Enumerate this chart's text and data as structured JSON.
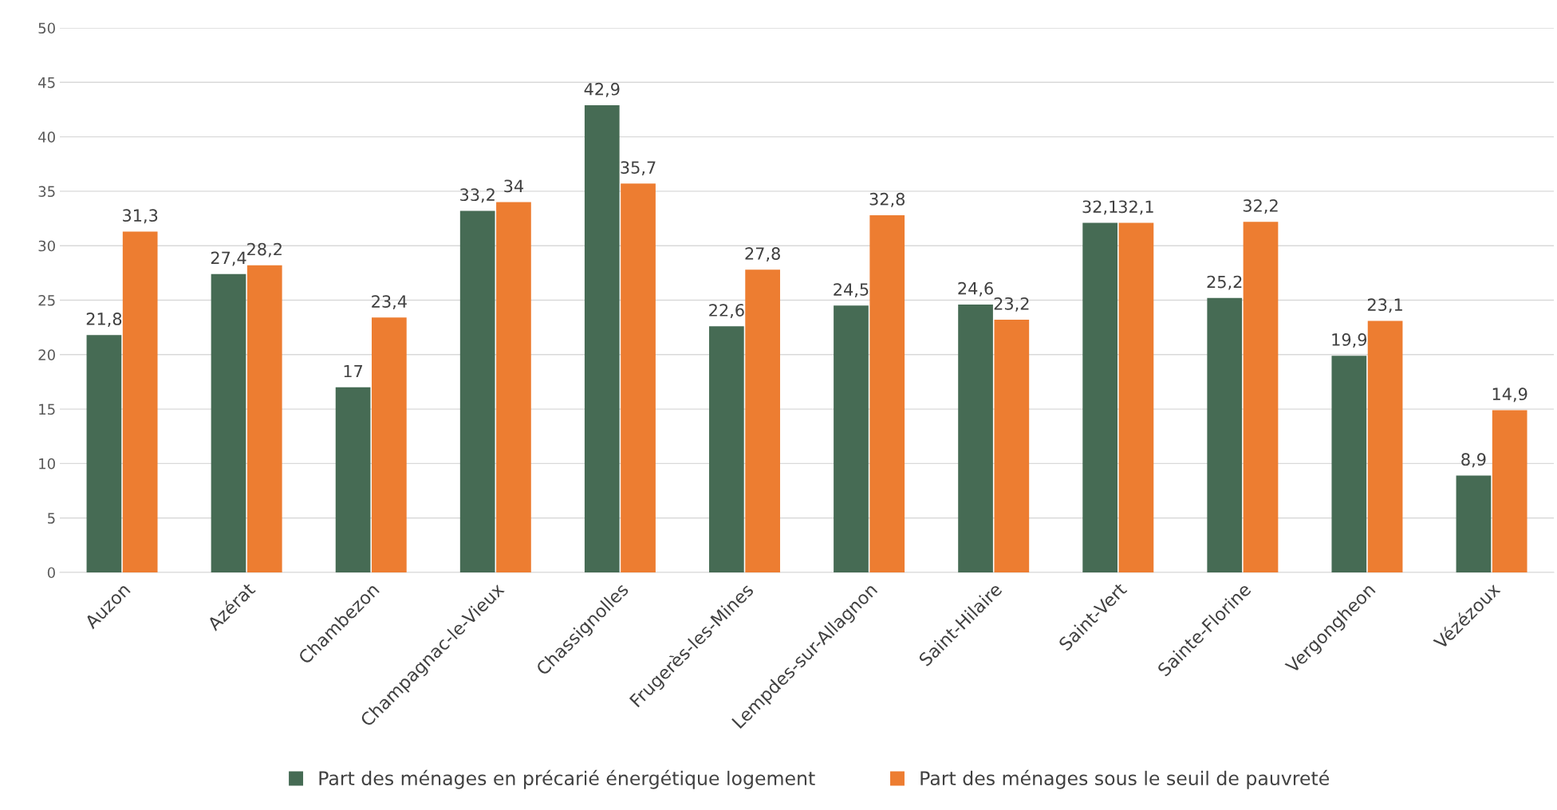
{
  "chart_data": {
    "type": "bar",
    "categories": [
      "Auzon",
      "Azérat",
      "Chambezon",
      "Champagnac-le-Vieux",
      "Chassignolles",
      "Frugerès-les-Mines",
      "Lempdes-sur-Allagnon",
      "Saint-Hilaire",
      "Saint-Vert",
      "Sainte-Florine",
      "Vergongheon",
      "Vézézoux"
    ],
    "series": [
      {
        "name": "Part des ménages en précarié énergétique logement",
        "color": "#466b54",
        "values": [
          21.8,
          27.4,
          17,
          33.2,
          42.9,
          22.6,
          24.5,
          24.6,
          32.1,
          25.2,
          19.9,
          8.9
        ],
        "value_labels": [
          "21,8",
          "27,4",
          "17",
          "33,2",
          "42,9",
          "22,6",
          "24,5",
          "24,6",
          "32,1",
          "25,2",
          "19,9",
          "8,9"
        ]
      },
      {
        "name": "Part des ménages sous le seuil de pauvreté",
        "color": "#ed7d31",
        "values": [
          31.3,
          28.2,
          23.4,
          34,
          35.7,
          27.8,
          32.8,
          23.2,
          32.1,
          32.2,
          23.1,
          14.9
        ],
        "value_labels": [
          "31,3",
          "28,2",
          "23,4",
          "34",
          "35,7",
          "27,8",
          "32,8",
          "23,2",
          "32,1",
          "32,2",
          "23,1",
          "14,9"
        ]
      }
    ],
    "ylim": [
      0,
      50
    ],
    "yticks": [
      0,
      5,
      10,
      15,
      20,
      25,
      30,
      35,
      40,
      45,
      50
    ],
    "grid": "y",
    "legend": "bottom"
  }
}
